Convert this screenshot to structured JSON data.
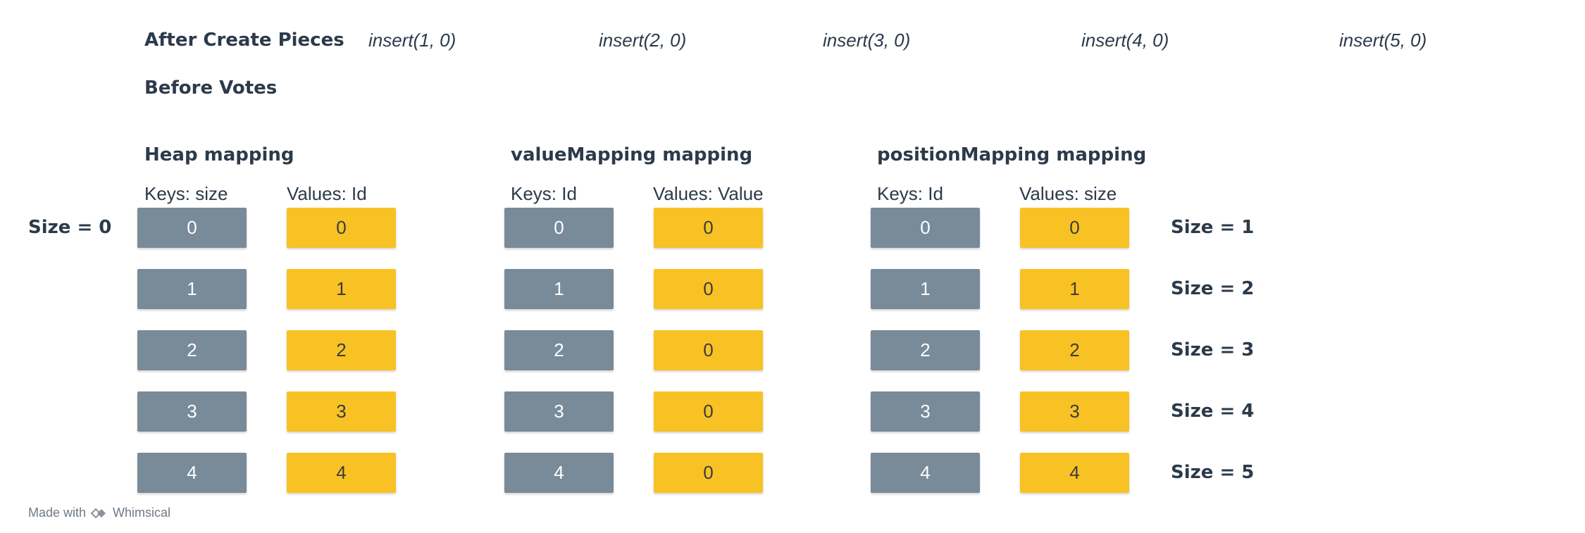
{
  "header": {
    "after_create": "After Create Pieces",
    "inserts": [
      "insert(1, 0)",
      "insert(2, 0)",
      "insert(3, 0)",
      "insert(4, 0)",
      "insert(5, 0)"
    ],
    "before_votes": "Before Votes"
  },
  "left_size_label": "Size = 0",
  "mappings": [
    {
      "title": "Heap mapping",
      "key_header": "Keys: size",
      "value_header": "Values: Id",
      "keys": [
        "0",
        "1",
        "2",
        "3",
        "4"
      ],
      "values": [
        "0",
        "1",
        "2",
        "3",
        "4"
      ]
    },
    {
      "title": "valueMapping mapping",
      "key_header": "Keys: Id",
      "value_header": "Values: Value",
      "keys": [
        "0",
        "1",
        "2",
        "3",
        "4"
      ],
      "values": [
        "0",
        "0",
        "0",
        "0",
        "0"
      ]
    },
    {
      "title": "positionMapping mapping",
      "key_header": "Keys: Id",
      "value_header": "Values: size",
      "keys": [
        "0",
        "1",
        "2",
        "3",
        "4"
      ],
      "values": [
        "0",
        "1",
        "2",
        "3",
        "4"
      ]
    }
  ],
  "right_size_labels": [
    "Size = 1",
    "Size = 2",
    "Size = 3",
    "Size = 4",
    "Size = 5"
  ],
  "footer": {
    "made_with": "Made with",
    "brand": "Whimsical"
  },
  "colors": {
    "key_box": "#798a98",
    "value_box": "#f8c224",
    "text": "#2c3a4a"
  }
}
